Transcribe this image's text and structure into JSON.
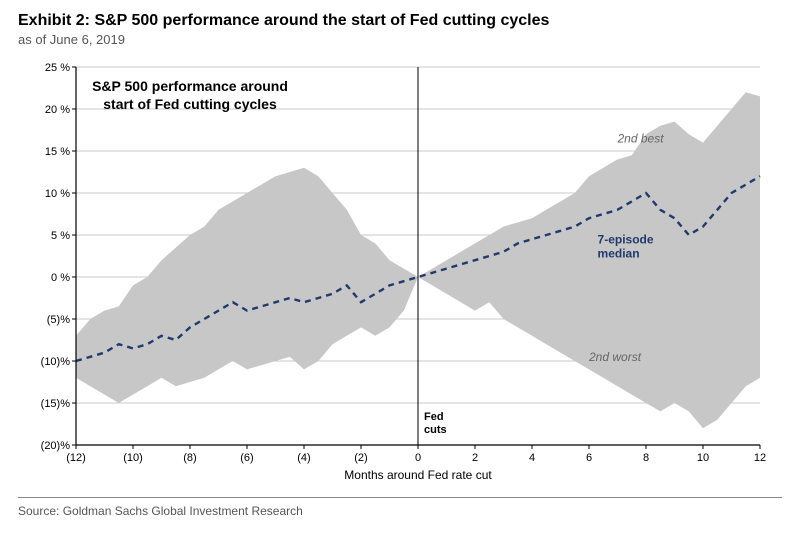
{
  "header": {
    "title": "Exhibit 2: S&P 500 performance around the start of Fed cutting cycles",
    "subtitle": "as of June 6, 2019"
  },
  "source": "Source: Goldman Sachs Global Investment Research",
  "chart": {
    "type": "line-with-band",
    "xlabel": "Months around Fed rate cut",
    "xlim": [
      -12,
      12
    ],
    "xticks": [
      -12,
      -10,
      -8,
      -6,
      -4,
      -2,
      0,
      2,
      4,
      6,
      8,
      10,
      12
    ],
    "ylim": [
      -20,
      25
    ],
    "yticks": [
      -20,
      -15,
      -10,
      -5,
      0,
      5,
      10,
      15,
      20,
      25
    ],
    "ytick_format": "percent_paren",
    "axis_color": "#000000",
    "grid_color": "#c9c9c9",
    "background_color": "#ffffff",
    "band_color": "#c7c7c7",
    "median_color": "#1f3a6e",
    "median_dash": "6,5",
    "median_width": 2.4,
    "tick_fontsize": 11,
    "label_fontsize": 12,
    "inset_title": "S&P 500 performance around\nstart of Fed cutting cycles",
    "inset_fontsize": 14,
    "annotation_fontsize": 12,
    "vline_label": "Fed\ncuts",
    "label_median": "7-episode\nmedian",
    "label_top": "2nd best",
    "label_bottom": "2nd worst",
    "band_top": {
      "x": [
        -12,
        -11.5,
        -11,
        -10.5,
        -10,
        -9.5,
        -9,
        -8.5,
        -8,
        -7.5,
        -7,
        -6.5,
        -6,
        -5.5,
        -5,
        -4.5,
        -4,
        -3.5,
        -3,
        -2.5,
        -2,
        -1.5,
        -1,
        -0.5,
        0,
        0.5,
        1,
        1.5,
        2,
        2.5,
        3,
        3.5,
        4,
        4.5,
        5,
        5.5,
        6,
        6.5,
        7,
        7.5,
        8,
        8.5,
        9,
        9.5,
        10,
        10.5,
        11,
        11.5,
        12
      ],
      "y": [
        -7,
        -5,
        -4,
        -3.5,
        -1,
        0,
        2,
        3.5,
        5,
        6,
        8,
        9,
        10,
        11,
        12,
        12.5,
        13,
        12,
        10,
        8,
        5,
        4,
        2,
        1,
        0,
        1,
        2,
        3,
        4,
        5,
        6,
        6.5,
        7,
        8,
        9,
        10,
        12,
        13,
        14,
        14.5,
        17,
        18,
        18.5,
        17,
        16,
        18,
        20,
        22,
        21.5
      ]
    },
    "band_bottom": {
      "x": [
        -12,
        -11.5,
        -11,
        -10.5,
        -10,
        -9.5,
        -9,
        -8.5,
        -8,
        -7.5,
        -7,
        -6.5,
        -6,
        -5.5,
        -5,
        -4.5,
        -4,
        -3.5,
        -3,
        -2.5,
        -2,
        -1.5,
        -1,
        -0.5,
        0,
        0.5,
        1,
        1.5,
        2,
        2.5,
        3,
        3.5,
        4,
        4.5,
        5,
        5.5,
        6,
        6.5,
        7,
        7.5,
        8,
        8.5,
        9,
        9.5,
        10,
        10.5,
        11,
        11.5,
        12
      ],
      "y": [
        -12,
        -13,
        -14,
        -15,
        -14,
        -13,
        -12,
        -13,
        -12.5,
        -12,
        -11,
        -10,
        -11,
        -10.5,
        -10,
        -9.5,
        -11,
        -10,
        -8,
        -7,
        -6,
        -7,
        -6,
        -4,
        0,
        -1,
        -2,
        -3,
        -4,
        -3,
        -5,
        -6,
        -7,
        -8,
        -9,
        -10,
        -11,
        -12,
        -13,
        -14,
        -15,
        -16,
        -15,
        -16,
        -18,
        -17,
        -15,
        -13,
        -12
      ]
    },
    "median": {
      "x": [
        -12,
        -11.5,
        -11,
        -10.5,
        -10,
        -9.5,
        -9,
        -8.5,
        -8,
        -7.5,
        -7,
        -6.5,
        -6,
        -5.5,
        -5,
        -4.5,
        -4,
        -3.5,
        -3,
        -2.5,
        -2,
        -1.5,
        -1,
        -0.5,
        0,
        0.5,
        1,
        1.5,
        2,
        2.5,
        3,
        3.5,
        4,
        4.5,
        5,
        5.5,
        6,
        6.5,
        7,
        7.5,
        8,
        8.5,
        9,
        9.5,
        10,
        10.5,
        11,
        11.5,
        12
      ],
      "y": [
        -10,
        -9.5,
        -9,
        -8,
        -8.5,
        -8,
        -7,
        -7.5,
        -6,
        -5,
        -4,
        -3,
        -4,
        -3.5,
        -3,
        -2.5,
        -3,
        -2.5,
        -2,
        -1,
        -3,
        -2,
        -1,
        -0.5,
        0,
        0.5,
        1,
        1.5,
        2,
        2.5,
        3,
        4,
        4.5,
        5,
        5.5,
        6,
        7,
        7.5,
        8,
        9,
        10,
        8,
        7,
        5,
        6,
        8,
        10,
        11,
        12
      ]
    }
  }
}
